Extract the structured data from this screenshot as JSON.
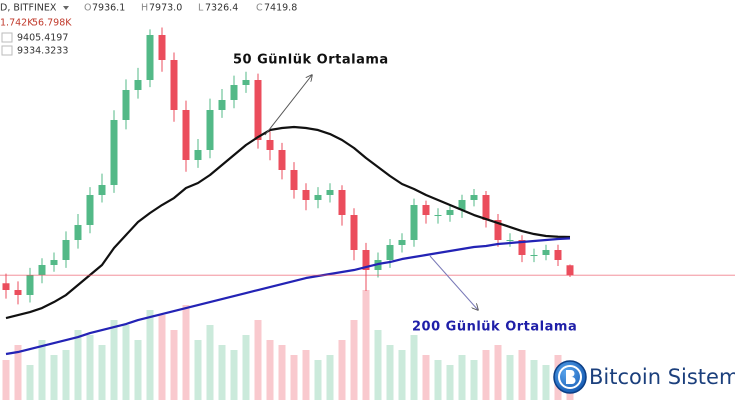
{
  "header": {
    "symbol": "D, BITFINEX",
    "ohlc": [
      {
        "key": "O",
        "value": "7936.1"
      },
      {
        "key": "H",
        "value": "7973.0"
      },
      {
        "key": "L",
        "value": "7326.4"
      },
      {
        "key": "C",
        "value": "7419.8"
      }
    ],
    "volume": [
      "1.742K",
      "56.798K"
    ],
    "ma": [
      "9405.4197",
      "9334.3233"
    ]
  },
  "chart_data": {
    "type": "candlestick",
    "open": [
      7000,
      6650,
      6390,
      7430,
      7950,
      8210,
      9250,
      10030,
      11590,
      12110,
      15490,
      17050,
      17570,
      19910,
      18610,
      16010,
      13410,
      13930,
      16010,
      16530,
      17310,
      17570,
      14450,
      13930,
      12890,
      11850,
      11330,
      11590,
      11850,
      10550,
      8730,
      7690,
      8210,
      8990,
      9250,
      11070,
      10550,
      10550,
      10810,
      11330,
      11590,
      10290,
      9250,
      9250,
      8470,
      8470,
      8730,
      7936.1
    ],
    "high": [
      7500,
      7100,
      7800,
      8300,
      8600,
      9700,
      10600,
      12000,
      12700,
      16000,
      17600,
      18200,
      20200,
      20300,
      19000,
      16500,
      14500,
      16600,
      17100,
      17800,
      18000,
      17900,
      14900,
      14300,
      13300,
      12200,
      12000,
      12200,
      12100,
      10900,
      9100,
      8600,
      9300,
      9600,
      11400,
      11300,
      10900,
      11100,
      11600,
      11900,
      11800,
      10600,
      9600,
      9500,
      8800,
      9000,
      9000,
      7973
    ],
    "low": [
      6200,
      5900,
      6000,
      7000,
      7600,
      7800,
      8800,
      9600,
      11200,
      11700,
      15000,
      16600,
      17200,
      18000,
      15400,
      12800,
      13000,
      13500,
      15600,
      16100,
      16900,
      14000,
      13400,
      12400,
      11400,
      10800,
      10900,
      11200,
      10000,
      8200,
      6600,
      7300,
      7800,
      8600,
      8900,
      10100,
      10100,
      10200,
      10400,
      11000,
      9900,
      8900,
      8900,
      8100,
      8100,
      8200,
      7900,
      7326.4
    ],
    "close": [
      6650,
      6390,
      7430,
      7950,
      8210,
      9250,
      10030,
      11590,
      12110,
      15490,
      17050,
      17570,
      19910,
      18610,
      16010,
      13410,
      13930,
      16010,
      16530,
      17310,
      17570,
      14450,
      13930,
      12890,
      11850,
      11330,
      11590,
      11850,
      10550,
      8730,
      7690,
      8210,
      8990,
      9250,
      11070,
      10550,
      10550,
      10810,
      11330,
      11590,
      10290,
      9250,
      9250,
      8470,
      8470,
      8730,
      8210,
      7419.8
    ],
    "volume": [
      40,
      55,
      35,
      60,
      45,
      50,
      70,
      65,
      55,
      80,
      75,
      60,
      90,
      85,
      70,
      95,
      60,
      75,
      55,
      50,
      65,
      80,
      60,
      55,
      45,
      50,
      40,
      45,
      60,
      80,
      110,
      70,
      55,
      50,
      65,
      45,
      40,
      35,
      45,
      40,
      50,
      55,
      45,
      50,
      40,
      35,
      45,
      30
    ],
    "ylim": [
      930,
      21730
    ],
    "volume_ylim": [
      0,
      400
    ],
    "up_color": "#53b987",
    "down_color": "#eb4d5c",
    "last_price_line": true,
    "series": [
      {
        "name": "50 Günlük Ortalama",
        "color": "#111111",
        "values": [
          5193,
          5349,
          5505,
          5713,
          6025,
          6389,
          6909,
          7429,
          7949,
          8833,
          9509,
          10185,
          10653,
          11069,
          11433,
          11953,
          12213,
          12629,
          13149,
          13669,
          14189,
          14605,
          14969,
          15073,
          15125,
          15073,
          14969,
          14761,
          14449,
          14033,
          13513,
          13045,
          12577,
          12161,
          11901,
          11589,
          11329,
          11069,
          10809,
          10549,
          10341,
          10133,
          9925,
          9717,
          9561,
          9457,
          9420,
          9405.4197
        ]
      },
      {
        "name": "200 Günlük Ortalama",
        "color": "#2323b5",
        "values": [
          3321,
          3425,
          3581,
          3737,
          3893,
          4049,
          4205,
          4413,
          4569,
          4725,
          4881,
          5089,
          5245,
          5401,
          5557,
          5713,
          5869,
          6025,
          6181,
          6337,
          6493,
          6649,
          6805,
          6961,
          7117,
          7273,
          7377,
          7481,
          7585,
          7689,
          7845,
          8001,
          8105,
          8261,
          8365,
          8469,
          8573,
          8677,
          8781,
          8885,
          8937,
          9041,
          9093,
          9145,
          9197,
          9249,
          9301,
          9334.3233
        ]
      }
    ]
  },
  "logo": {
    "text": "Bitcoin Sistemi"
  }
}
